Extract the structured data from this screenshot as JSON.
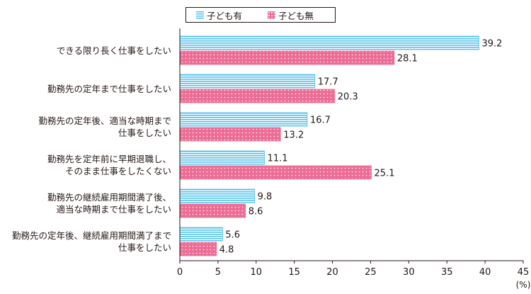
{
  "chart_data": {
    "type": "bar",
    "orientation": "horizontal",
    "categories": [
      "できる限り長く仕事をしたい",
      "勤務先の定年まで仕事をしたい",
      "勤務先の定年後、適当な時期まで\n仕事をしたい",
      "勤務先を定年前に早期退職し、\nそのまま仕事をしたくない",
      "勤務先の継続雇用期間満了後、\n適当な時期まで仕事をしたい",
      "勤務先の定年後、継続雇用期間満了まで\n仕事をしたい"
    ],
    "series": [
      {
        "name": "子ども有",
        "values": [
          39.2,
          17.7,
          16.7,
          11.1,
          9.8,
          5.6
        ],
        "color": "#56c1e8"
      },
      {
        "name": "子ども無",
        "values": [
          28.1,
          20.3,
          13.2,
          25.1,
          8.6,
          4.8
        ],
        "color": "#ec6d96"
      }
    ],
    "xlim": [
      0,
      45
    ],
    "xticks": [
      0,
      5,
      10,
      15,
      20,
      25,
      30,
      35,
      40,
      45
    ],
    "xunit": "(%)",
    "legend_position": "top-center",
    "grid": false
  }
}
